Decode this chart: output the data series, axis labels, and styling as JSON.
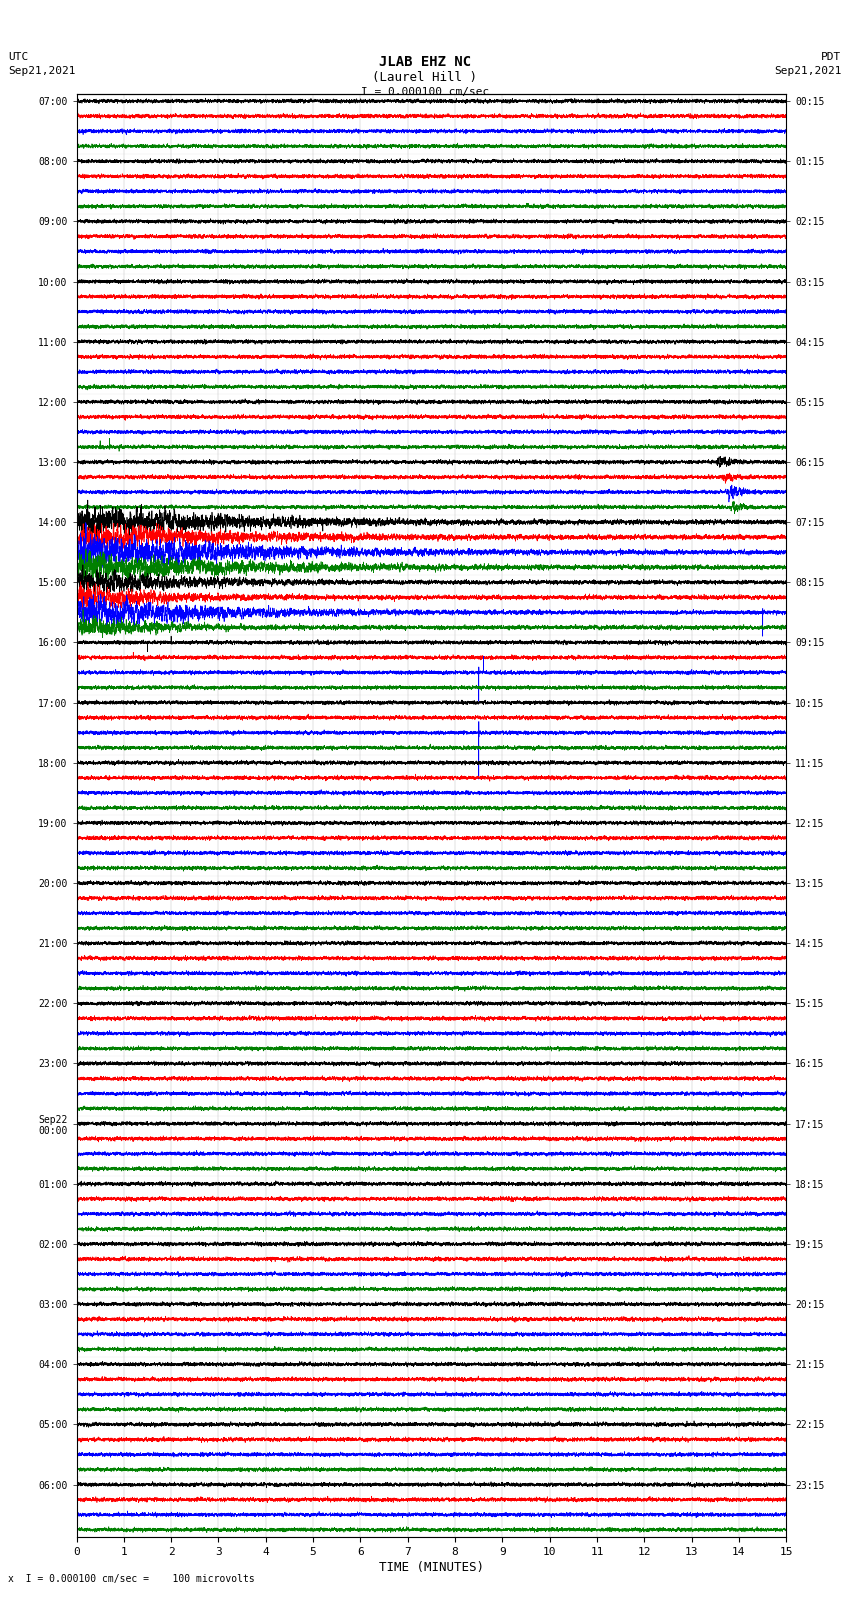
{
  "title_line1": "JLAB EHZ NC",
  "title_line2": "(Laurel Hill )",
  "scale_text": "I = 0.000100 cm/sec",
  "left_label_top": "UTC",
  "left_label_bot": "Sep21,2021",
  "right_label_top": "PDT",
  "right_label_bot": "Sep21,2021",
  "bottom_label": "TIME (MINUTES)",
  "bottom_note": "x  I = 0.000100 cm/sec =    100 microvolts",
  "xlabel_ticks": [
    0,
    1,
    2,
    3,
    4,
    5,
    6,
    7,
    8,
    9,
    10,
    11,
    12,
    13,
    14,
    15
  ],
  "utc_labels": [
    "07:00",
    "08:00",
    "09:00",
    "10:00",
    "11:00",
    "12:00",
    "13:00",
    "14:00",
    "15:00",
    "16:00",
    "17:00",
    "18:00",
    "19:00",
    "20:00",
    "21:00",
    "22:00",
    "23:00",
    "Sep22\n00:00",
    "01:00",
    "02:00",
    "03:00",
    "04:00",
    "05:00",
    "06:00"
  ],
  "pdt_labels": [
    "00:15",
    "01:15",
    "02:15",
    "03:15",
    "04:15",
    "05:15",
    "06:15",
    "07:15",
    "08:15",
    "09:15",
    "10:15",
    "11:15",
    "12:15",
    "13:15",
    "14:15",
    "15:15",
    "16:15",
    "17:15",
    "18:15",
    "19:15",
    "20:15",
    "21:15",
    "22:15",
    "23:15"
  ],
  "n_rows": 24,
  "traces_per_row": 4,
  "trace_colors": [
    "black",
    "red",
    "blue",
    "green"
  ],
  "fig_bg": "#ffffff",
  "axes_bg": "#ffffff",
  "line_width": 0.5,
  "xlim": [
    0,
    15
  ],
  "n_points": 9000,
  "minutes": 15
}
